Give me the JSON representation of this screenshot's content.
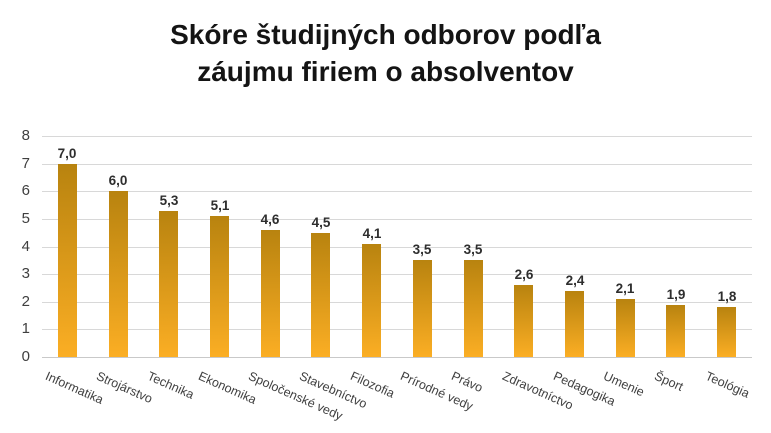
{
  "title": {
    "line1": "Skóre študijných odborov podľa",
    "line2": "záujmu firiem o absolventov"
  },
  "chart_data": {
    "type": "bar",
    "title": "Skóre študijných odborov podľa záujmu firiem o absolventov",
    "categories": [
      "Informatika",
      "Strojárstvo",
      "Technika",
      "Ekonomika",
      "Spoločenské vedy",
      "Stavebníctvo",
      "Filozofia",
      "Prírodné vedy",
      "Právo",
      "Zdravotníctvo",
      "Pedagogika",
      "Umenie",
      "Šport",
      "Teológia"
    ],
    "values": [
      7.0,
      6.0,
      5.3,
      5.1,
      4.6,
      4.5,
      4.1,
      3.5,
      3.5,
      2.6,
      2.4,
      2.1,
      1.9,
      1.8
    ],
    "value_labels": [
      "7,0",
      "6,0",
      "5,3",
      "5,1",
      "4,6",
      "4,5",
      "4,1",
      "3,5",
      "3,5",
      "2,6",
      "2,4",
      "2,1",
      "1,9",
      "1,8"
    ],
    "xlabel": "",
    "ylabel": "",
    "ylim": [
      0,
      8
    ],
    "yticks": [
      "0",
      "1",
      "2",
      "3",
      "4",
      "5",
      "6",
      "7",
      "8"
    ],
    "grid": true,
    "legend": false,
    "decimal_separator": ",",
    "colors": {
      "bar_gradient_top": "#b8830f",
      "bar_gradient_bottom": "#fbae24",
      "gridline": "#d8d8d8",
      "title_text": "#141414",
      "axis_text": "#3f3f3f",
      "value_label_text": "#2e2e2e"
    },
    "category_label_rotation_deg": 24
  }
}
